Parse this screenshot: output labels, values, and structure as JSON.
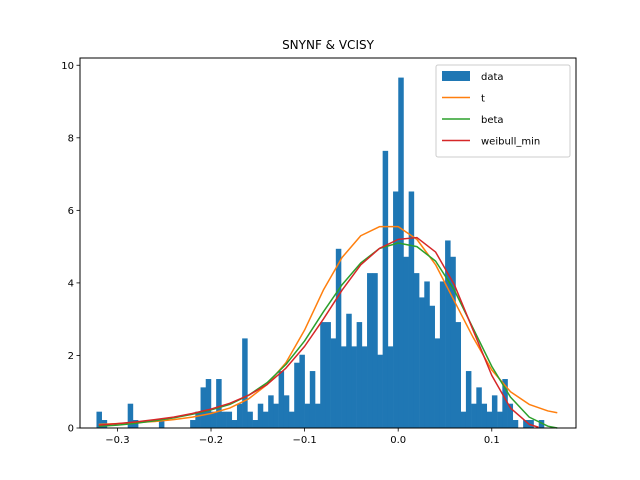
{
  "chart_data": {
    "type": "bar",
    "title": "SNYNF & VCISY",
    "xlabel": "",
    "ylabel": "",
    "xlim": [
      -0.34,
      0.19
    ],
    "ylim": [
      0,
      10.2
    ],
    "xticks": [
      -0.3,
      -0.2,
      -0.1,
      0.0,
      0.1
    ],
    "xtick_labels": [
      "−0.3",
      "−0.2",
      "−0.1",
      "0.0",
      "0.1"
    ],
    "yticks": [
      0,
      2,
      4,
      6,
      8,
      10
    ],
    "ytick_labels": [
      "0",
      "2",
      "4",
      "6",
      "8",
      "10"
    ],
    "grid": false,
    "legend_position": "top-right",
    "histogram": {
      "name": "data",
      "color": "#1f77b4",
      "bin_start": -0.3224,
      "bin_width": 0.00556,
      "densities": [
        0.45,
        0.22,
        0.0,
        0.0,
        0.0,
        0.0,
        0.67,
        0.22,
        0.0,
        0.0,
        0.0,
        0.0,
        0.22,
        0.0,
        0.0,
        0.0,
        0.0,
        0.0,
        0.22,
        0.45,
        1.12,
        1.35,
        0.45,
        1.35,
        0.45,
        0.45,
        0.22,
        0.67,
        2.47,
        0.45,
        0.22,
        0.67,
        0.45,
        0.9,
        0.67,
        1.57,
        0.9,
        0.45,
        1.8,
        2.02,
        0.67,
        1.57,
        0.67,
        2.92,
        2.92,
        2.47,
        4.94,
        2.25,
        3.15,
        2.25,
        2.92,
        2.25,
        4.27,
        4.27,
        2.02,
        7.64,
        2.25,
        6.52,
        9.66,
        4.72,
        6.52,
        4.27,
        3.6,
        4.04,
        3.37,
        2.47,
        4.04,
        5.17,
        4.72,
        2.92,
        0.45,
        1.57,
        0.67,
        1.12,
        0.67,
        0.45,
        0.9,
        0.45,
        1.35,
        0.67,
        0.22,
        0.0,
        0.22,
        0.22,
        0.0,
        0.22
      ]
    },
    "series": [
      {
        "name": "t",
        "color": "#ff7f0e",
        "type": "line",
        "x": [
          -0.32,
          -0.3,
          -0.28,
          -0.26,
          -0.24,
          -0.22,
          -0.2,
          -0.18,
          -0.16,
          -0.14,
          -0.12,
          -0.1,
          -0.08,
          -0.06,
          -0.04,
          -0.02,
          0.0,
          0.02,
          0.04,
          0.06,
          0.08,
          0.1,
          0.12,
          0.14,
          0.16,
          0.17
        ],
        "y": [
          0.1,
          0.12,
          0.15,
          0.18,
          0.23,
          0.3,
          0.4,
          0.55,
          0.8,
          1.2,
          1.8,
          2.7,
          3.8,
          4.7,
          5.3,
          5.55,
          5.55,
          5.2,
          4.5,
          3.5,
          2.5,
          1.6,
          1.0,
          0.65,
          0.47,
          0.42
        ]
      },
      {
        "name": "beta",
        "color": "#2ca02c",
        "type": "line",
        "x": [
          -0.32,
          -0.3,
          -0.28,
          -0.26,
          -0.24,
          -0.22,
          -0.2,
          -0.18,
          -0.16,
          -0.14,
          -0.12,
          -0.1,
          -0.08,
          -0.06,
          -0.04,
          -0.02,
          0.0,
          0.02,
          0.04,
          0.06,
          0.08,
          0.1,
          0.12,
          0.14,
          0.16,
          0.17
        ],
        "y": [
          0.05,
          0.08,
          0.13,
          0.2,
          0.28,
          0.38,
          0.5,
          0.65,
          0.9,
          1.25,
          1.75,
          2.4,
          3.2,
          3.95,
          4.55,
          4.95,
          5.1,
          5.0,
          4.6,
          3.8,
          2.75,
          1.7,
          0.85,
          0.3,
          0.05,
          0.0
        ]
      },
      {
        "name": "weibull_min",
        "color": "#d62728",
        "type": "line",
        "x": [
          -0.32,
          -0.3,
          -0.28,
          -0.26,
          -0.24,
          -0.22,
          -0.2,
          -0.18,
          -0.16,
          -0.14,
          -0.12,
          -0.1,
          -0.08,
          -0.06,
          -0.04,
          -0.02,
          0.0,
          0.02,
          0.04,
          0.06,
          0.08,
          0.1,
          0.12,
          0.14,
          0.15
        ],
        "y": [
          0.08,
          0.12,
          0.17,
          0.23,
          0.3,
          0.4,
          0.52,
          0.68,
          0.9,
          1.2,
          1.65,
          2.25,
          3.0,
          3.8,
          4.5,
          4.95,
          5.2,
          5.25,
          4.85,
          3.95,
          2.7,
          1.45,
          0.55,
          0.1,
          0.02
        ]
      }
    ]
  }
}
